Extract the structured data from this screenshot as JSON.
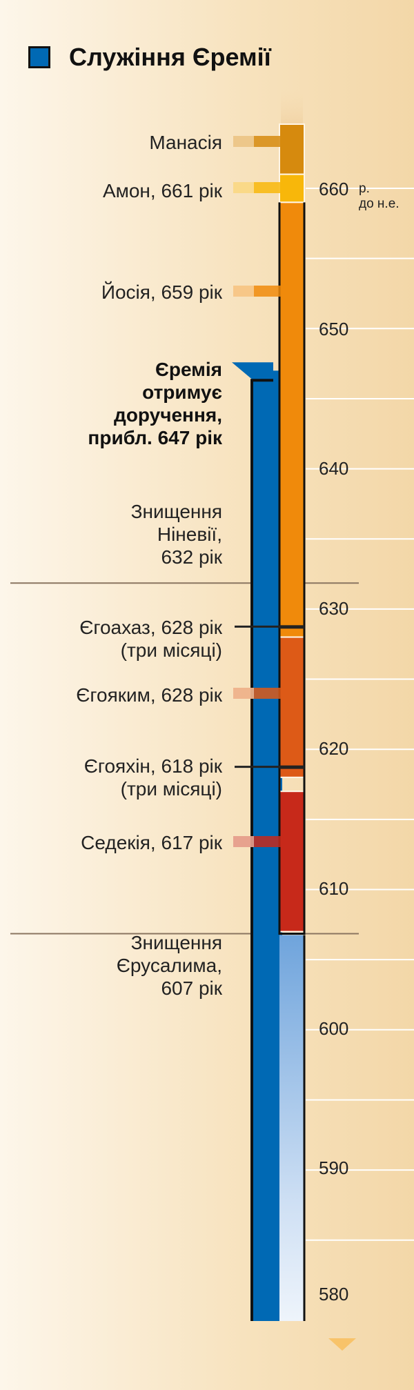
{
  "title": "Служіння Єремії",
  "legend_color": "#0069b4",
  "axis": {
    "unit_line1": "р.",
    "unit_line2": "до н.е.",
    "year_labels": [
      "660",
      "650",
      "640",
      "630",
      "620",
      "610",
      "600",
      "590",
      "580"
    ]
  },
  "events": [
    {
      "lines": [
        "Манасія"
      ],
      "bold": false
    },
    {
      "lines": [
        "Амон, 661 рік"
      ],
      "bold": false
    },
    {
      "lines": [
        "Йосія, 659 рік"
      ],
      "bold": false
    },
    {
      "lines": [
        "Єремія",
        "отримує",
        "доручення,",
        "прибл. 647 рік"
      ],
      "bold": true
    },
    {
      "lines": [
        "Знищення",
        "Ніневії,",
        "632 рік"
      ],
      "bold": false
    },
    {
      "lines": [
        "Єгоахаз, 628 рік",
        "(три місяці)"
      ],
      "bold": false
    },
    {
      "lines": [
        "Єгояким, 628 рік"
      ],
      "bold": false
    },
    {
      "lines": [
        "Єгояхін, 618 рік",
        "(три місяці)"
      ],
      "bold": false
    },
    {
      "lines": [
        "Седекія, 617 рік"
      ],
      "bold": false
    },
    {
      "lines": [
        "Знищення",
        "Єрусалима,",
        "607 рік"
      ],
      "bold": false
    }
  ],
  "chart_data": {
    "type": "timeline",
    "title": "Служіння Єремії",
    "axis_unit": "р. до н.е.",
    "axis_ticks": [
      660,
      650,
      640,
      630,
      620,
      610,
      600,
      590,
      580
    ],
    "kings": [
      {
        "name": "Манасія",
        "start": 665,
        "end": 661,
        "color": "#d68a0e"
      },
      {
        "name": "Амон",
        "start": 661,
        "end": 659,
        "color": "#f8b70a"
      },
      {
        "name": "Йосія",
        "start": 659,
        "end": 628,
        "color": "#f08a0b"
      },
      {
        "name": "Єгоахаз",
        "start": 628,
        "end": 628,
        "color": "#222222"
      },
      {
        "name": "Єгояким",
        "start": 628,
        "end": 618,
        "color": "#dd5a17"
      },
      {
        "name": "Єгояхін",
        "start": 618,
        "end": 618,
        "color": "#222222"
      },
      {
        "name": "Седекія",
        "start": 617,
        "end": 607,
        "color": "#c7291a"
      }
    ],
    "ministry": {
      "name": "Єремія",
      "start": 647,
      "end": 580,
      "color": "#0069b4"
    },
    "events": [
      {
        "year": 632,
        "label": "Знищення Ніневії"
      },
      {
        "year": 607,
        "label": "Знищення Єрусалима"
      }
    ]
  }
}
